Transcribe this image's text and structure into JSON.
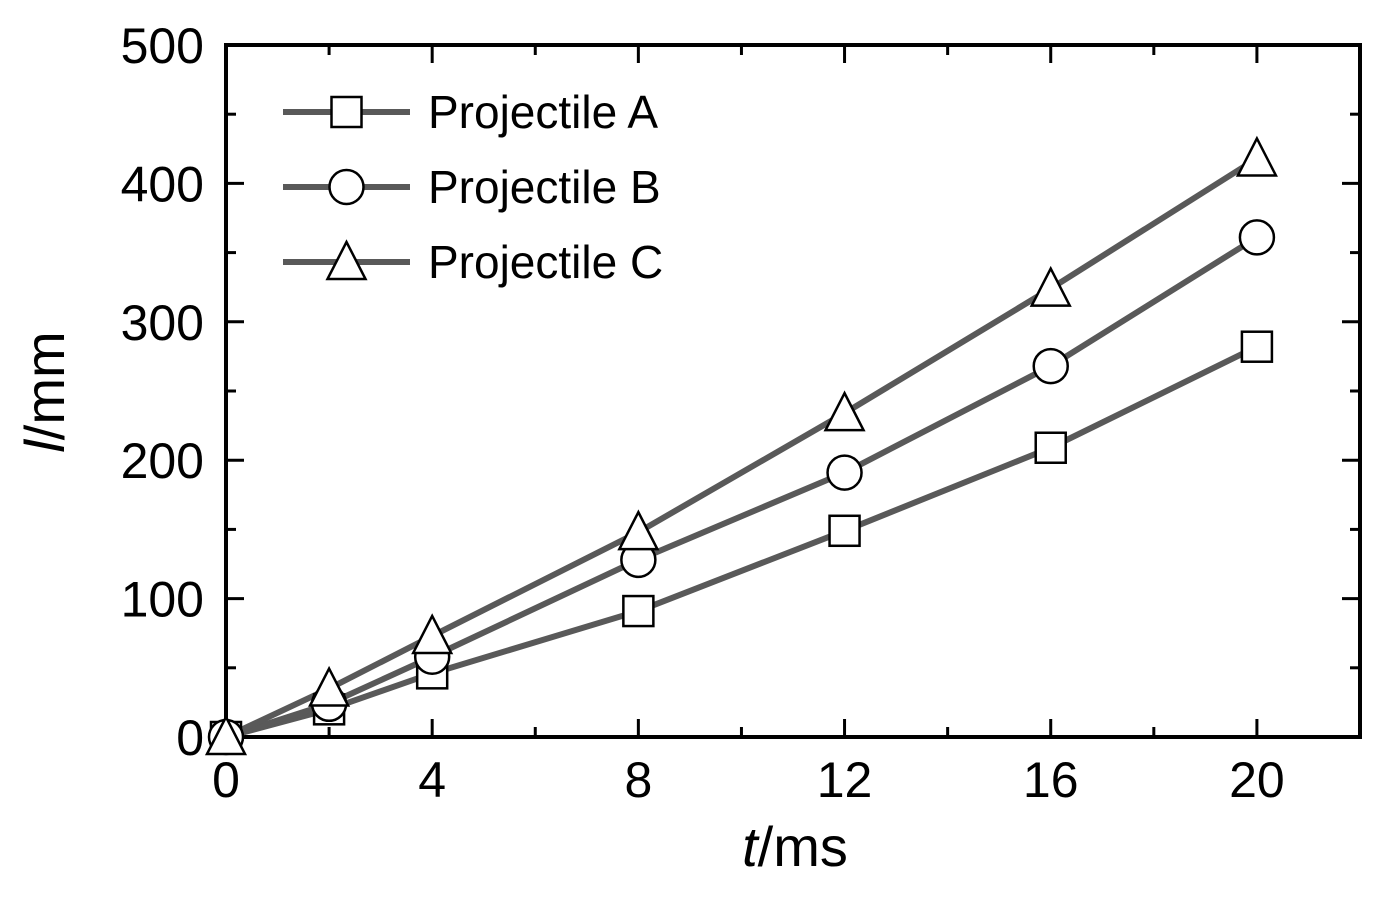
{
  "chart_data": {
    "type": "line",
    "title": "",
    "xlabel": "t/ms",
    "xlabel_var": "t",
    "xlabel_unit": "/ms",
    "ylabel": "l/mm",
    "ylabel_var": "l",
    "ylabel_unit": "/mm",
    "xlim": [
      0,
      22
    ],
    "ylim": [
      0,
      500
    ],
    "xticks": [
      0,
      4,
      8,
      12,
      16,
      20
    ],
    "xticks_minor": [
      2,
      6,
      10,
      14,
      18,
      22
    ],
    "yticks": [
      0,
      100,
      200,
      300,
      400,
      500
    ],
    "yticks_minor": [
      50,
      150,
      250,
      350,
      450
    ],
    "grid": false,
    "legend_position": "top-left",
    "series": [
      {
        "name": "Projectile A",
        "marker": "square",
        "x": [
          0,
          2,
          4,
          8,
          12,
          16,
          20
        ],
        "y": [
          0,
          20,
          46,
          91,
          149,
          209,
          282
        ]
      },
      {
        "name": "Projectile B",
        "marker": "circle",
        "x": [
          0,
          2,
          4,
          8,
          12,
          16,
          20
        ],
        "y": [
          0,
          24,
          58,
          128,
          191,
          268,
          361
        ]
      },
      {
        "name": "Projectile C",
        "marker": "triangle",
        "x": [
          0,
          2,
          4,
          8,
          12,
          16,
          20
        ],
        "y": [
          0,
          35,
          73,
          148,
          234,
          324,
          418
        ]
      }
    ],
    "colors": {
      "line": "#595959",
      "marker_edge": "#000000",
      "marker_fill": "#ffffff",
      "axis": "#000000"
    }
  }
}
